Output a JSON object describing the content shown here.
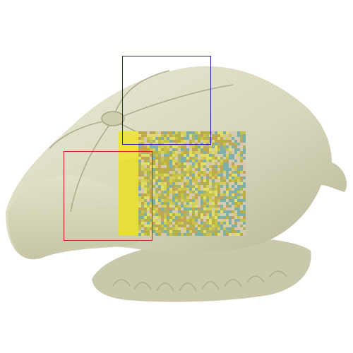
{
  "image": {
    "subject": "newsboy-cap",
    "background_color": "#ffffff",
    "cap_color": "#d9d8bd",
    "cap_shadow_color": "#b7b594",
    "cap_highlight_color": "#ecebd6",
    "noise_patch_colors": [
      "#c8c24a",
      "#d4cf5a",
      "#b8b13e",
      "#e0dd6a",
      "#a9b46a",
      "#c2a35a",
      "#7fb0a8",
      "#d6c9b0"
    ],
    "yellow_block_color": "#e6de3a"
  },
  "annotations": {
    "blue_box_color": "#1f1fb4",
    "red_box_color": "#d01818"
  }
}
